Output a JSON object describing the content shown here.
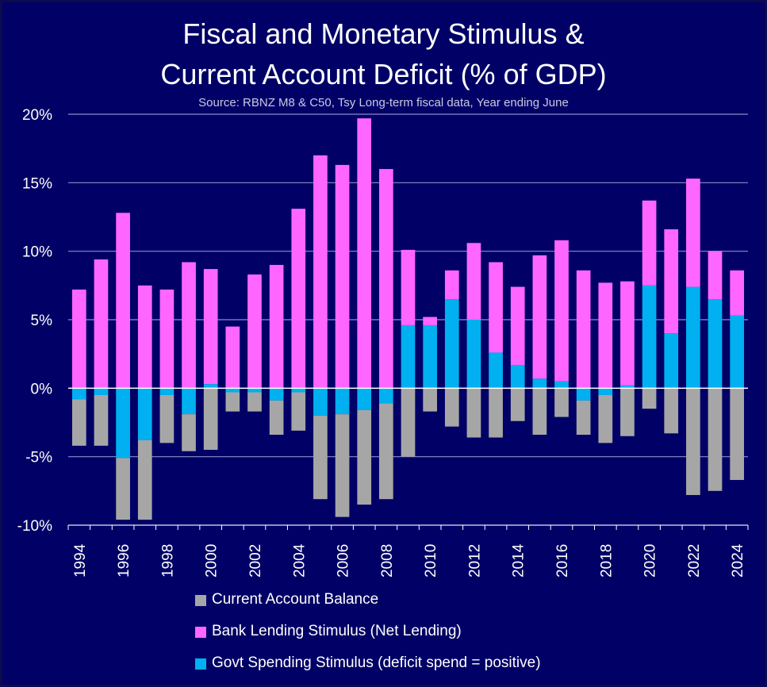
{
  "title_line1": "Fiscal and Monetary Stimulus &",
  "title_line2": "Current Account Deficit (% of GDP)",
  "subtitle": "Source: RBNZ M8 & C50, Tsy Long-term fiscal data, Year ending June",
  "chart_data": {
    "type": "bar",
    "stacked": true,
    "years": [
      1994,
      1995,
      1996,
      1997,
      1998,
      1999,
      2000,
      2001,
      2002,
      2003,
      2004,
      2005,
      2006,
      2007,
      2008,
      2009,
      2010,
      2011,
      2012,
      2013,
      2014,
      2015,
      2016,
      2017,
      2018,
      2019,
      2020,
      2021,
      2022,
      2023,
      2024
    ],
    "x_tick_labels": [
      "1994",
      "1996",
      "1998",
      "2000",
      "2002",
      "2004",
      "2006",
      "2008",
      "2010",
      "2012",
      "2014",
      "2016",
      "2018",
      "2020",
      "2022",
      "2024"
    ],
    "y_ticks": [
      20,
      15,
      10,
      5,
      0,
      -5,
      -10
    ],
    "y_tick_labels": [
      "20%",
      "15%",
      "10%",
      "5%",
      "0%",
      "-5%",
      "-10%"
    ],
    "ylim": [
      -10,
      20
    ],
    "grid": true,
    "legend_position": "bottom",
    "series": [
      {
        "name": "Current Account Balance",
        "color": "#a6a6a6",
        "values": [
          -3.4,
          -3.7,
          -4.5,
          -5.8,
          -3.5,
          -2.7,
          -4.5,
          -1.4,
          -1.4,
          -2.5,
          -2.8,
          -6.1,
          -7.5,
          -6.9,
          -7.0,
          -5.0,
          -1.7,
          -2.8,
          -3.6,
          -3.6,
          -2.4,
          -3.4,
          -2.1,
          -2.5,
          -3.5,
          -3.5,
          -1.5,
          -3.3,
          -7.8,
          -7.5,
          -6.7
        ]
      },
      {
        "name": "Bank Lending Stimulus (Net Lending)",
        "color": "#ff66ff",
        "values": [
          7.2,
          9.4,
          12.8,
          7.5,
          7.2,
          9.2,
          8.4,
          4.5,
          8.3,
          9.0,
          13.1,
          17.0,
          16.3,
          19.7,
          16.0,
          5.5,
          0.6,
          2.1,
          5.6,
          6.6,
          5.7,
          9.0,
          10.3,
          8.6,
          7.7,
          7.6,
          6.2,
          7.6,
          7.9,
          3.5,
          3.3
        ]
      },
      {
        "name": "Govt Spending Stimulus (deficit spend = positive)",
        "color": "#00b0f0",
        "values": [
          -0.8,
          -0.5,
          -5.1,
          -3.8,
          -0.5,
          -1.9,
          0.3,
          -0.3,
          -0.3,
          -0.9,
          -0.3,
          -2.0,
          -1.9,
          -1.6,
          -1.1,
          4.6,
          4.6,
          6.5,
          5.0,
          2.6,
          1.7,
          0.7,
          0.5,
          -0.9,
          -0.5,
          0.2,
          7.5,
          4.0,
          7.4,
          6.5,
          5.3
        ]
      }
    ]
  }
}
